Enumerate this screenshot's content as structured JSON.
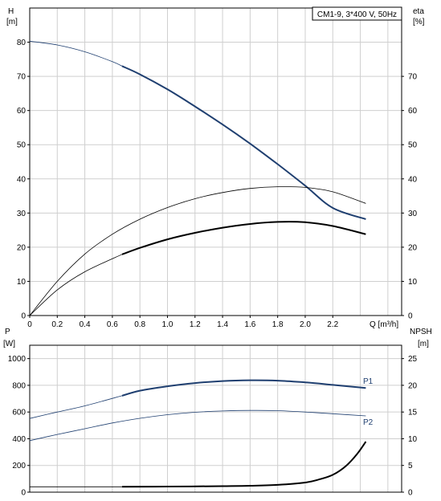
{
  "chart_data": [
    {
      "type": "line",
      "title": "CM1-9, 3*400 V, 50Hz",
      "xlabel": "Q [m³/h]",
      "ylabel_left": [
        "H",
        "[m]"
      ],
      "ylabel_right": [
        "eta",
        "[%]"
      ],
      "xlim": [
        0,
        2.7
      ],
      "ylim": [
        0,
        90
      ],
      "grid": true,
      "x_ticks": [
        "0",
        "0.2",
        "0.4",
        "0.6",
        "0.8",
        "1.0",
        "1.2",
        "1.4",
        "1.6",
        "1.8",
        "2.0",
        "2.2"
      ],
      "y_ticks_left": [
        "0",
        "10",
        "20",
        "30",
        "40",
        "50",
        "60",
        "70",
        "80"
      ],
      "y_ticks_right": [
        "0",
        "10",
        "20",
        "30",
        "40",
        "50",
        "60",
        "70"
      ],
      "series": [
        {
          "color": "#1f3f70",
          "thin_to": 0.67,
          "points": [
            [
              0,
              80.3
            ],
            [
              0.2,
              79.2
            ],
            [
              0.4,
              77.2
            ],
            [
              0.6,
              74.3
            ],
            [
              0.8,
              70.6
            ],
            [
              1.0,
              66.2
            ],
            [
              1.2,
              61.2
            ],
            [
              1.4,
              55.9
            ],
            [
              1.6,
              50.3
            ],
            [
              1.8,
              44.3
            ],
            [
              2.0,
              38.0
            ],
            [
              2.2,
              31.5
            ],
            [
              2.44,
              28.2
            ]
          ]
        },
        {
          "color": "#000000",
          "thin_to": 2.44,
          "points": [
            [
              0,
              0
            ],
            [
              0.2,
              10.0
            ],
            [
              0.4,
              18.0
            ],
            [
              0.6,
              23.8
            ],
            [
              0.8,
              28.2
            ],
            [
              1.0,
              31.6
            ],
            [
              1.2,
              34.2
            ],
            [
              1.4,
              36.0
            ],
            [
              1.6,
              37.2
            ],
            [
              1.8,
              37.7
            ],
            [
              2.0,
              37.5
            ],
            [
              2.2,
              36.2
            ],
            [
              2.44,
              32.8
            ]
          ]
        },
        {
          "color": "#000000",
          "thin_to": 0.67,
          "points": [
            [
              0,
              0
            ],
            [
              0.2,
              7.5
            ],
            [
              0.4,
              12.8
            ],
            [
              0.67,
              17.9
            ],
            [
              0.8,
              19.8
            ],
            [
              1.0,
              22.3
            ],
            [
              1.2,
              24.2
            ],
            [
              1.4,
              25.7
            ],
            [
              1.6,
              26.8
            ],
            [
              1.8,
              27.4
            ],
            [
              2.0,
              27.3
            ],
            [
              2.2,
              26.2
            ],
            [
              2.44,
              23.8
            ]
          ]
        }
      ]
    },
    {
      "type": "line",
      "xlim": [
        0,
        2.7
      ],
      "ylim": [
        0,
        1100
      ],
      "grid": true,
      "ylabel_left": [
        "P",
        "[W]"
      ],
      "ylabel_right": [
        "NPSH",
        "[m]"
      ],
      "y_ticks_left": [
        "0",
        "200",
        "400",
        "600",
        "800",
        "1000"
      ],
      "y_ticks_right": [
        "0",
        "5",
        "10",
        "15",
        "20",
        "25"
      ],
      "series": [
        {
          "name": "P1",
          "color": "#1f3f70",
          "thin_to": 0.67,
          "points": [
            [
              0,
              552
            ],
            [
              0.2,
              600
            ],
            [
              0.4,
              646
            ],
            [
              0.67,
              722
            ],
            [
              0.8,
              760
            ],
            [
              1.0,
              793
            ],
            [
              1.2,
              817
            ],
            [
              1.4,
              832
            ],
            [
              1.6,
              838
            ],
            [
              1.8,
              835
            ],
            [
              2.0,
              822
            ],
            [
              2.2,
              803
            ],
            [
              2.44,
              780
            ]
          ]
        },
        {
          "name": "P2",
          "color": "#1f3f70",
          "thin_to": 2.44,
          "points": [
            [
              0,
              386
            ],
            [
              0.2,
              432
            ],
            [
              0.4,
              475
            ],
            [
              0.6,
              518
            ],
            [
              0.8,
              553
            ],
            [
              1.0,
              580
            ],
            [
              1.2,
              598
            ],
            [
              1.4,
              608
            ],
            [
              1.6,
              612
            ],
            [
              1.8,
              610
            ],
            [
              2.0,
              600
            ],
            [
              2.2,
              587
            ],
            [
              2.44,
              571
            ]
          ]
        },
        {
          "color": "#000000",
          "thin_to": 0,
          "points": [
            [
              0.67,
              40
            ],
            [
              1.0,
              42
            ],
            [
              1.4,
              45
            ],
            [
              1.6,
              48
            ],
            [
              1.8,
              55
            ],
            [
              2.0,
              72
            ],
            [
              2.1,
              95
            ],
            [
              2.2,
              130
            ],
            [
              2.3,
              200
            ],
            [
              2.38,
              290
            ],
            [
              2.44,
              378
            ]
          ]
        },
        {
          "color": "#000000",
          "thin_to": 2.44,
          "points": [
            [
              0,
              40
            ],
            [
              0.67,
              40
            ]
          ]
        }
      ]
    }
  ]
}
